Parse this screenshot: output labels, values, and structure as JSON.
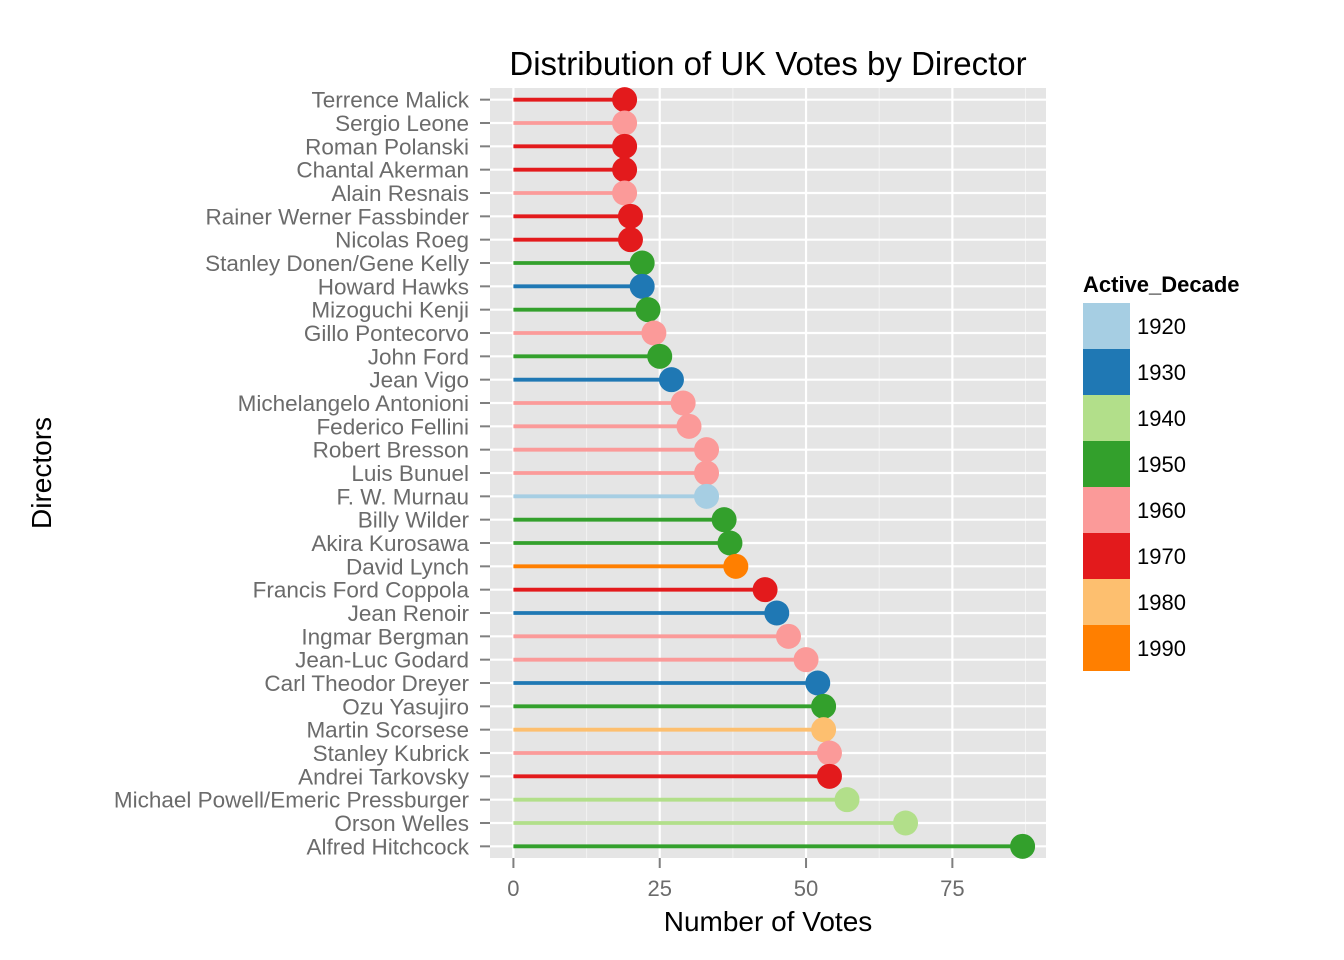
{
  "chart_data": {
    "type": "lollipop",
    "title": "Distribution of UK Votes by Director",
    "xlabel": "Number of Votes",
    "ylabel": "Directors",
    "xlim": [
      -4,
      91
    ],
    "xticks": [
      0,
      25,
      50,
      75
    ],
    "grid": true,
    "legend": {
      "title": "Active_Decade",
      "position": "right",
      "entries": [
        {
          "label": "1920",
          "color": "#a6cee3"
        },
        {
          "label": "1930",
          "color": "#1f78b4"
        },
        {
          "label": "1940",
          "color": "#b2df8a"
        },
        {
          "label": "1950",
          "color": "#33a02c"
        },
        {
          "label": "1960",
          "color": "#fb9a99"
        },
        {
          "label": "1970",
          "color": "#e31a1c"
        },
        {
          "label": "1980",
          "color": "#fdbf6f"
        },
        {
          "label": "1990",
          "color": "#ff7f00"
        }
      ]
    },
    "points": [
      {
        "director": "Terrence Malick",
        "votes": 19,
        "decade": "1970"
      },
      {
        "director": "Sergio Leone",
        "votes": 19,
        "decade": "1960"
      },
      {
        "director": "Roman Polanski",
        "votes": 19,
        "decade": "1970"
      },
      {
        "director": "Chantal Akerman",
        "votes": 19,
        "decade": "1970"
      },
      {
        "director": "Alain Resnais",
        "votes": 19,
        "decade": "1960"
      },
      {
        "director": "Rainer Werner Fassbinder",
        "votes": 20,
        "decade": "1970"
      },
      {
        "director": "Nicolas Roeg",
        "votes": 20,
        "decade": "1970"
      },
      {
        "director": "Stanley Donen/Gene Kelly",
        "votes": 22,
        "decade": "1950"
      },
      {
        "director": "Howard Hawks",
        "votes": 22,
        "decade": "1930"
      },
      {
        "director": "Mizoguchi Kenji",
        "votes": 23,
        "decade": "1950"
      },
      {
        "director": "Gillo Pontecorvo",
        "votes": 24,
        "decade": "1960"
      },
      {
        "director": "John Ford",
        "votes": 25,
        "decade": "1950"
      },
      {
        "director": "Jean Vigo",
        "votes": 27,
        "decade": "1930"
      },
      {
        "director": "Michelangelo Antonioni",
        "votes": 29,
        "decade": "1960"
      },
      {
        "director": "Federico Fellini",
        "votes": 30,
        "decade": "1960"
      },
      {
        "director": "Robert Bresson",
        "votes": 33,
        "decade": "1960"
      },
      {
        "director": "Luis Bunuel",
        "votes": 33,
        "decade": "1960"
      },
      {
        "director": "F. W. Murnau",
        "votes": 33,
        "decade": "1920"
      },
      {
        "director": "Billy Wilder",
        "votes": 36,
        "decade": "1950"
      },
      {
        "director": "Akira Kurosawa",
        "votes": 37,
        "decade": "1950"
      },
      {
        "director": "David Lynch",
        "votes": 38,
        "decade": "1990"
      },
      {
        "director": "Francis Ford Coppola",
        "votes": 43,
        "decade": "1970"
      },
      {
        "director": "Jean Renoir",
        "votes": 45,
        "decade": "1930"
      },
      {
        "director": "Ingmar Bergman",
        "votes": 47,
        "decade": "1960"
      },
      {
        "director": "Jean-Luc Godard",
        "votes": 50,
        "decade": "1960"
      },
      {
        "director": "Carl Theodor Dreyer",
        "votes": 52,
        "decade": "1930"
      },
      {
        "director": "Ozu Yasujiro",
        "votes": 53,
        "decade": "1950"
      },
      {
        "director": "Martin Scorsese",
        "votes": 53,
        "decade": "1980"
      },
      {
        "director": "Stanley Kubrick",
        "votes": 54,
        "decade": "1960"
      },
      {
        "director": "Andrei Tarkovsky",
        "votes": 54,
        "decade": "1970"
      },
      {
        "director": "Michael Powell/Emeric Pressburger",
        "votes": 57,
        "decade": "1940"
      },
      {
        "director": "Orson Welles",
        "votes": 67,
        "decade": "1940"
      },
      {
        "director": "Alfred Hitchcock",
        "votes": 87,
        "decade": "1950"
      }
    ]
  }
}
